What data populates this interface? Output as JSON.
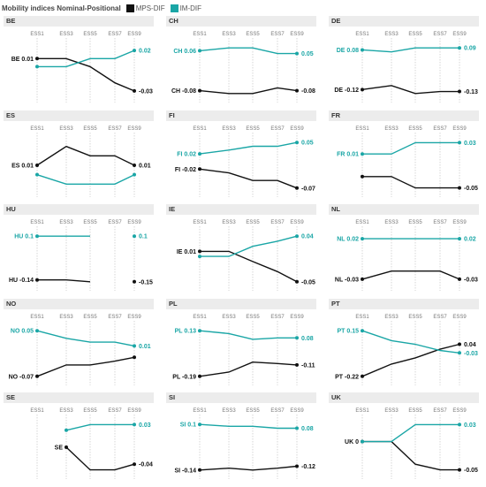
{
  "legend": {
    "title": "Mobility indices Nominal-Positional",
    "items": [
      {
        "label": "MPS-DIF",
        "color": "#111111"
      },
      {
        "label": "IM-DIF",
        "color": "#1aa6a6"
      }
    ]
  },
  "chart_data": {
    "type": "line",
    "x": [
      "ESS1",
      "ESS3",
      "ESS5",
      "ESS7",
      "ESS9"
    ],
    "grid": "vertical dotted at each x tick",
    "panels": [
      {
        "title": "BE",
        "series": [
          {
            "name": "MPS-DIF",
            "color": "#111111",
            "values": [
              0.01,
              0.01,
              0.0,
              -0.02,
              -0.03
            ],
            "start_label": "BE 0.01",
            "end_label": "-0.03"
          },
          {
            "name": "IM-DIF",
            "color": "#1aa6a6",
            "values": [
              0.0,
              0.0,
              0.01,
              0.01,
              0.02
            ],
            "start_label": "",
            "end_label": "0.02"
          }
        ]
      },
      {
        "title": "CH",
        "series": [
          {
            "name": "MPS-DIF",
            "color": "#111111",
            "values": [
              -0.08,
              -0.09,
              -0.09,
              -0.07,
              -0.08
            ],
            "start_label": "CH -0.08",
            "end_label": "-0.08"
          },
          {
            "name": "IM-DIF",
            "color": "#1aa6a6",
            "values": [
              0.06,
              0.07,
              0.07,
              0.05,
              0.05
            ],
            "start_label": "CH 0.06",
            "end_label": "0.05"
          }
        ]
      },
      {
        "title": "DE",
        "series": [
          {
            "name": "MPS-DIF",
            "color": "#111111",
            "values": [
              -0.12,
              -0.1,
              -0.14,
              -0.13,
              -0.13
            ],
            "start_label": "DE -0.12",
            "end_label": "-0.13"
          },
          {
            "name": "IM-DIF",
            "color": "#1aa6a6",
            "values": [
              0.08,
              0.07,
              0.09,
              0.09,
              0.09
            ],
            "start_label": "DE 0.08",
            "end_label": "0.09"
          }
        ]
      },
      {
        "title": "ES",
        "series": [
          {
            "name": "MPS-DIF",
            "color": "#111111",
            "values": [
              0.01,
              0.03,
              0.02,
              0.02,
              0.01
            ],
            "start_label": "ES 0.01",
            "end_label": "0.01"
          },
          {
            "name": "IM-DIF",
            "color": "#1aa6a6",
            "values": [
              0.0,
              -0.01,
              -0.01,
              -0.01,
              0.0
            ],
            "start_label": "",
            "end_label": ""
          }
        ]
      },
      {
        "title": "FI",
        "series": [
          {
            "name": "MPS-DIF",
            "color": "#111111",
            "values": [
              -0.02,
              -0.03,
              -0.05,
              -0.05,
              -0.07
            ],
            "start_label": "FI -0.02",
            "end_label": "-0.07"
          },
          {
            "name": "IM-DIF",
            "color": "#1aa6a6",
            "values": [
              0.02,
              0.03,
              0.04,
              0.04,
              0.05
            ],
            "start_label": "FI 0.02",
            "end_label": "0.05"
          }
        ]
      },
      {
        "title": "FR",
        "series": [
          {
            "name": "MPS-DIF",
            "color": "#111111",
            "values": [
              -0.03,
              -0.03,
              -0.05,
              -0.05,
              -0.05
            ],
            "start_label": "",
            "end_label": "-0.05"
          },
          {
            "name": "IM-DIF",
            "color": "#1aa6a6",
            "values": [
              0.01,
              0.01,
              0.03,
              0.03,
              0.03
            ],
            "start_label": "FR 0.01",
            "end_label": "0.03"
          }
        ]
      },
      {
        "title": "HU",
        "series": [
          {
            "name": "MPS-DIF",
            "color": "#111111",
            "values": [
              -0.14,
              -0.14,
              -0.15,
              null,
              -0.15
            ],
            "start_label": "HU -0.14",
            "end_label": "-0.15"
          },
          {
            "name": "IM-DIF",
            "color": "#1aa6a6",
            "values": [
              0.1,
              0.1,
              0.1,
              null,
              0.1
            ],
            "start_label": "HU 0.1",
            "end_label": "0.1"
          }
        ]
      },
      {
        "title": "IE",
        "series": [
          {
            "name": "MPS-DIF",
            "color": "#111111",
            "values": [
              0.01,
              0.01,
              -0.01,
              -0.03,
              -0.05
            ],
            "start_label": "IE 0.01",
            "end_label": "-0.05"
          },
          {
            "name": "IM-DIF",
            "color": "#1aa6a6",
            "values": [
              0.0,
              0.0,
              0.02,
              0.03,
              0.04
            ],
            "start_label": "",
            "end_label": "0.04"
          }
        ]
      },
      {
        "title": "NL",
        "series": [
          {
            "name": "MPS-DIF",
            "color": "#111111",
            "values": [
              -0.03,
              -0.02,
              -0.02,
              -0.02,
              -0.03
            ],
            "start_label": "NL -0.03",
            "end_label": "-0.03"
          },
          {
            "name": "IM-DIF",
            "color": "#1aa6a6",
            "values": [
              0.02,
              0.02,
              0.02,
              0.02,
              0.02
            ],
            "start_label": "NL 0.02",
            "end_label": "0.02"
          }
        ]
      },
      {
        "title": "NO",
        "series": [
          {
            "name": "MPS-DIF",
            "color": "#111111",
            "values": [
              -0.07,
              -0.04,
              -0.04,
              -0.03,
              -0.02
            ],
            "start_label": "NO -0.07",
            "end_label": ""
          },
          {
            "name": "IM-DIF",
            "color": "#1aa6a6",
            "values": [
              0.05,
              0.03,
              0.02,
              0.02,
              0.01
            ],
            "start_label": "NO 0.05",
            "end_label": "0.01"
          }
        ]
      },
      {
        "title": "PL",
        "series": [
          {
            "name": "MPS-DIF",
            "color": "#111111",
            "values": [
              -0.19,
              -0.16,
              -0.09,
              -0.1,
              -0.11
            ],
            "start_label": "PL -0.19",
            "end_label": "-0.11"
          },
          {
            "name": "IM-DIF",
            "color": "#1aa6a6",
            "values": [
              0.13,
              0.11,
              0.07,
              0.08,
              0.08
            ],
            "start_label": "PL 0.13",
            "end_label": "0.08"
          }
        ]
      },
      {
        "title": "PT",
        "series": [
          {
            "name": "MPS-DIF",
            "color": "#111111",
            "values": [
              -0.22,
              -0.12,
              -0.07,
              0.0,
              0.04
            ],
            "start_label": "PT -0.22",
            "end_label": "0.04"
          },
          {
            "name": "IM-DIF",
            "color": "#1aa6a6",
            "values": [
              0.15,
              0.07,
              0.04,
              -0.01,
              -0.03
            ],
            "start_label": "PT 0.15",
            "end_label": "-0.03"
          }
        ]
      },
      {
        "title": "SE",
        "series": [
          {
            "name": "MPS-DIF",
            "color": "#111111",
            "values": [
              null,
              -0.01,
              -0.05,
              -0.05,
              -0.04
            ],
            "start_label": "SE",
            "end_label": "-0.04"
          },
          {
            "name": "IM-DIF",
            "color": "#1aa6a6",
            "values": [
              null,
              0.02,
              0.03,
              0.03,
              0.03
            ],
            "start_label": "",
            "end_label": "0.03"
          }
        ]
      },
      {
        "title": "SI",
        "series": [
          {
            "name": "MPS-DIF",
            "color": "#111111",
            "values": [
              -0.14,
              -0.13,
              -0.14,
              -0.13,
              -0.12
            ],
            "start_label": "SI -0.14",
            "end_label": "-0.12"
          },
          {
            "name": "IM-DIF",
            "color": "#1aa6a6",
            "values": [
              0.1,
              0.09,
              0.09,
              0.08,
              0.08
            ],
            "start_label": "SI 0.1",
            "end_label": "0.08"
          }
        ]
      },
      {
        "title": "UK",
        "series": [
          {
            "name": "MPS-DIF",
            "color": "#111111",
            "values": [
              0.0,
              0.0,
              -0.04,
              -0.05,
              -0.05
            ],
            "start_label": "UK 0",
            "end_label": "-0.05"
          },
          {
            "name": "IM-DIF",
            "color": "#1aa6a6",
            "values": [
              0.0,
              0.0,
              0.03,
              0.03,
              0.03
            ],
            "start_label": "",
            "end_label": "0.03"
          }
        ]
      }
    ]
  }
}
